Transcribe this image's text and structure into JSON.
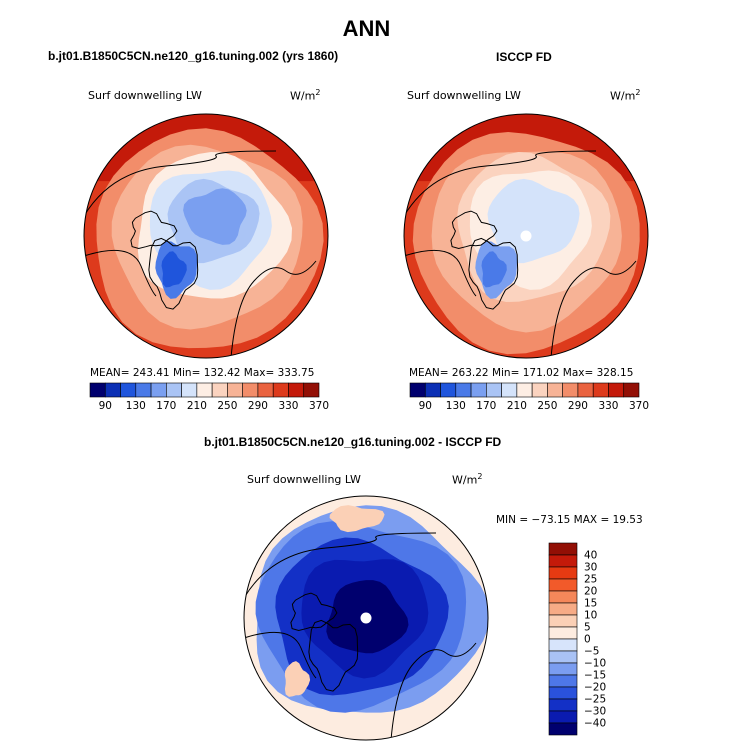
{
  "figure": {
    "season": "ANN"
  },
  "panels": {
    "model": {
      "title": "b.jt01.B1850C5CN.ne120_g16.tuning.002 (yrs 1860)",
      "variable": "Surf downwelling LW",
      "units": "W/m",
      "units_exp": "2",
      "stats": "MEAN= 243.41  Min= 132.42  Max= 333.75"
    },
    "obs": {
      "title": "ISCCP FD",
      "variable": "Surf downwelling LW",
      "units": "W/m",
      "units_exp": "2",
      "stats": "MEAN= 263.22  Min= 171.02  Max= 328.15"
    },
    "diff": {
      "title": "b.jt01.B1850C5CN.ne120_g16.tuning.002 - ISCCP FD",
      "variable": "Surf downwelling LW",
      "units": "W/m",
      "units_exp": "2",
      "minmax": "MIN = −73.15 MAX =  19.53"
    }
  },
  "chart_data": [
    {
      "type": "heatmap",
      "projection": "north polar stereographic",
      "title": "b.jt01.B1850C5CN.ne120_g16.tuning.002 (yrs 1860)",
      "variable": "Surf downwelling LW",
      "units": "W/m2",
      "mean": 243.41,
      "min": 132.42,
      "max": 333.75,
      "colorbar_ticks": [
        "90",
        "130",
        "170",
        "210",
        "250",
        "290",
        "330",
        "370"
      ],
      "colorbar_colors": [
        "#00006e",
        "#0b2fb5",
        "#1f55dc",
        "#4a7ae8",
        "#7a9ff0",
        "#aac4f5",
        "#d4e3fa",
        "#fdeee4",
        "#fbd3bf",
        "#f7b396",
        "#f28d6a",
        "#ea6340",
        "#dd3a1c",
        "#c41a0a",
        "#920f05"
      ]
    },
    {
      "type": "heatmap",
      "projection": "north polar stereographic",
      "title": "ISCCP FD",
      "variable": "Surf downwelling LW",
      "units": "W/m2",
      "mean": 263.22,
      "min": 171.02,
      "max": 328.15,
      "colorbar_ticks": [
        "90",
        "130",
        "170",
        "210",
        "250",
        "290",
        "330",
        "370"
      ],
      "colorbar_colors": [
        "#00006e",
        "#0b2fb5",
        "#1f55dc",
        "#4a7ae8",
        "#7a9ff0",
        "#aac4f5",
        "#d4e3fa",
        "#fdeee4",
        "#fbd3bf",
        "#f7b396",
        "#f28d6a",
        "#ea6340",
        "#dd3a1c",
        "#c41a0a",
        "#920f05"
      ]
    },
    {
      "type": "heatmap",
      "projection": "north polar stereographic",
      "title": "b.jt01.B1850C5CN.ne120_g16.tuning.002 - ISCCP FD",
      "variable": "Surf downwelling LW",
      "units": "W/m2",
      "min": -73.15,
      "max": 19.53,
      "colorbar_ticks": [
        "40",
        "30",
        "25",
        "20",
        "15",
        "10",
        "5",
        "0",
        "−5",
        "−10",
        "−15",
        "−20",
        "−25",
        "−30",
        "−40"
      ],
      "colorbar_colors": [
        "#920f05",
        "#c41a0a",
        "#e63a12",
        "#f25a2a",
        "#f5875a",
        "#f7ab86",
        "#fbd0b6",
        "#fdece0",
        "#d7e4fb",
        "#a9c2f5",
        "#7b9df0",
        "#4e77e8",
        "#2a52dc",
        "#1330c6",
        "#0a1bb0",
        "#00006e"
      ]
    }
  ]
}
